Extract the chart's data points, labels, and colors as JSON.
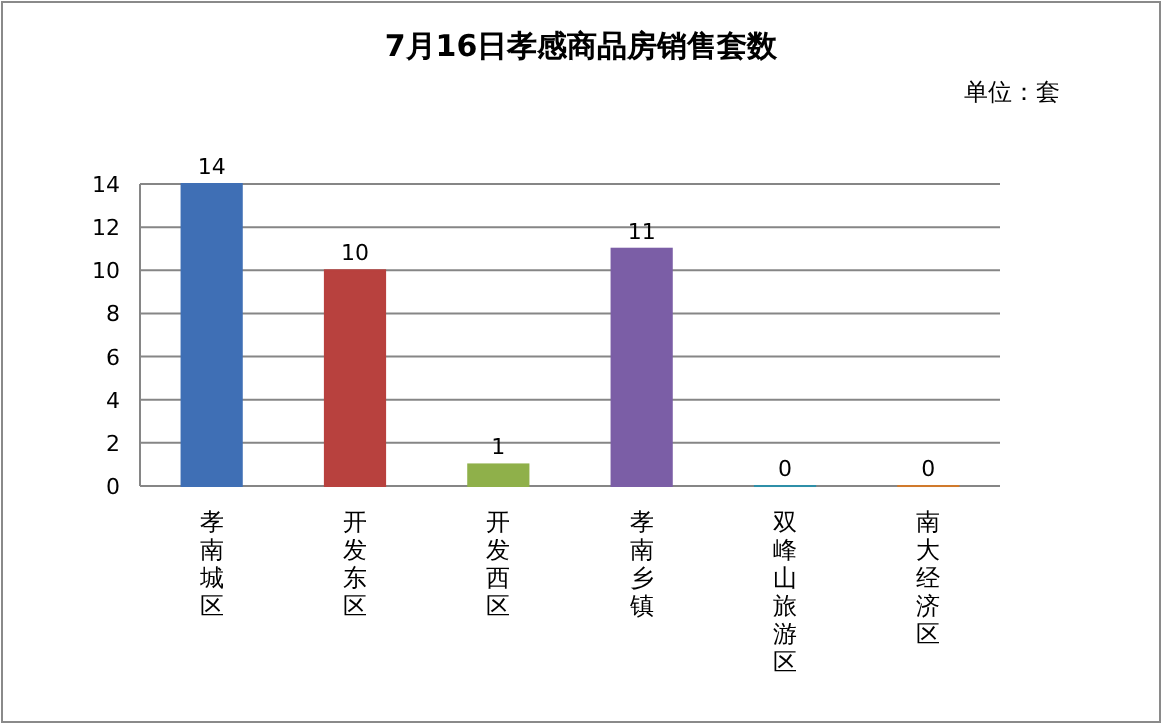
{
  "chart_data": {
    "type": "bar",
    "title": "7月16日孝感商品房销售套数",
    "annotations": [
      "单位：套"
    ],
    "categories": [
      "孝南城区",
      "开发东区",
      "开发西区",
      "孝南乡镇",
      "双峰山旅游区",
      "南大经济区"
    ],
    "values": [
      14,
      10,
      1,
      11,
      0,
      0
    ],
    "colors": [
      "#3f6fb5",
      "#b8413e",
      "#8fb04a",
      "#7b5ea6",
      "#2e8fa8",
      "#d07a2c"
    ],
    "ylim": [
      0,
      14
    ],
    "yticks": [
      0,
      2,
      4,
      6,
      8,
      10,
      12,
      14
    ],
    "grid": "y",
    "data_labels": true
  }
}
